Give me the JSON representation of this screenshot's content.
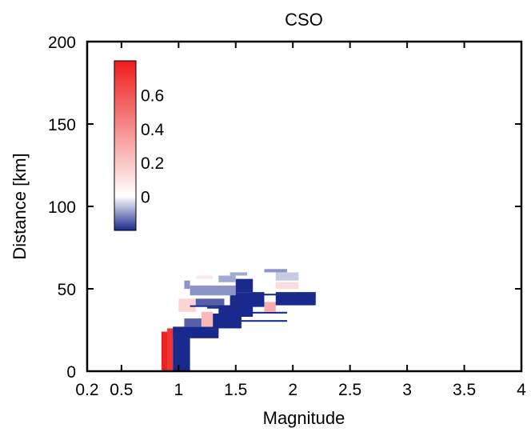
{
  "chart_data": {
    "type": "heatmap",
    "title": "CSO",
    "xlabel": "Magnitude",
    "ylabel": "Distance [km]",
    "xlim": [
      0.2,
      4
    ],
    "ylim": [
      0,
      200
    ],
    "xticks": [
      0.2,
      0.5,
      1,
      1.5,
      2,
      2.5,
      3,
      3.5,
      4
    ],
    "xtick_labels": [
      "0.2",
      "0.5",
      "1",
      "1.5",
      "2",
      "2.5",
      "3",
      "3.5",
      "4"
    ],
    "yticks": [
      0,
      50,
      100,
      150,
      200
    ],
    "ytick_labels": [
      "0",
      "50",
      "100",
      "150",
      "200"
    ],
    "grid": false,
    "colorbar": {
      "position": "top-left",
      "range": [
        -0.2,
        0.8
      ],
      "ticks": [
        0,
        0.2,
        0.4,
        0.6
      ],
      "tick_labels": [
        "0",
        "0.2",
        "0.4",
        "0.6"
      ],
      "colors": {
        "low": "#1a2a8c",
        "mid": "#ffffff",
        "high": "#ee1c1c"
      }
    },
    "cells": [
      {
        "m": [
          0.85,
          0.9
        ],
        "d": [
          0,
          24
        ],
        "v": 0.78
      },
      {
        "m": [
          0.9,
          0.95
        ],
        "d": [
          0,
          26
        ],
        "v": 0.72
      },
      {
        "m": [
          0.95,
          1.1
        ],
        "d": [
          0,
          26
        ],
        "v": -0.25
      },
      {
        "m": [
          0.95,
          1.35
        ],
        "d": [
          20,
          27
        ],
        "v": -0.55
      },
      {
        "m": [
          1.05,
          1.35
        ],
        "d": [
          23,
          26
        ],
        "v": -0.85
      },
      {
        "m": [
          1.05,
          1.2
        ],
        "d": [
          27,
          32
        ],
        "v": -0.15
      },
      {
        "m": [
          1.2,
          1.3
        ],
        "d": [
          27,
          36
        ],
        "v": 0.25
      },
      {
        "m": [
          1.3,
          1.55
        ],
        "d": [
          26,
          35
        ],
        "v": -0.45
      },
      {
        "m": [
          1.35,
          1.65
        ],
        "d": [
          33,
          40
        ],
        "v": -0.25
      },
      {
        "m": [
          1.5,
          1.55
        ],
        "d": [
          37,
          39
        ],
        "v": -0.75
      },
      {
        "m": [
          1.55,
          1.95
        ],
        "d": [
          30,
          31
        ],
        "v": -0.7
      },
      {
        "m": [
          1.55,
          1.95
        ],
        "d": [
          35,
          36
        ],
        "v": -0.2
      },
      {
        "m": [
          1.25,
          1.5
        ],
        "d": [
          38,
          39
        ],
        "v": -0.5
      },
      {
        "m": [
          1.0,
          1.15
        ],
        "d": [
          36,
          44
        ],
        "v": 0.15
      },
      {
        "m": [
          1.15,
          1.4
        ],
        "d": [
          40,
          44
        ],
        "v": -0.15
      },
      {
        "m": [
          1.1,
          1.45
        ],
        "d": [
          39,
          40
        ],
        "v": -0.6
      },
      {
        "m": [
          1.45,
          1.75
        ],
        "d": [
          39,
          48
        ],
        "v": -0.3
      },
      {
        "m": [
          1.55,
          1.65
        ],
        "d": [
          43,
          47
        ],
        "v": -0.6
      },
      {
        "m": [
          1.75,
          1.85
        ],
        "d": [
          36,
          42
        ],
        "v": 0.3
      },
      {
        "m": [
          1.85,
          2.2
        ],
        "d": [
          40,
          48
        ],
        "v": -0.2
      },
      {
        "m": [
          1.65,
          1.95
        ],
        "d": [
          46,
          47
        ],
        "v": -0.8
      },
      {
        "m": [
          1.95,
          2.2
        ],
        "d": [
          45,
          46
        ],
        "v": -0.4
      },
      {
        "m": [
          1.85,
          2.05
        ],
        "d": [
          50,
          54
        ],
        "v": 0.12
      },
      {
        "m": [
          1.1,
          1.5
        ],
        "d": [
          46,
          52
        ],
        "v": -0.1
      },
      {
        "m": [
          1.5,
          1.65
        ],
        "d": [
          48,
          56
        ],
        "v": -0.2
      },
      {
        "m": [
          1.35,
          1.5
        ],
        "d": [
          54,
          58
        ],
        "v": -0.08
      },
      {
        "m": [
          1.15,
          1.3
        ],
        "d": [
          56,
          58
        ],
        "v": 0.08
      },
      {
        "m": [
          1.05,
          1.1
        ],
        "d": [
          50,
          55
        ],
        "v": -0.1
      },
      {
        "m": [
          1.85,
          2.05
        ],
        "d": [
          55,
          60
        ],
        "v": -0.05
      },
      {
        "m": [
          1.75,
          1.95
        ],
        "d": [
          60,
          62
        ],
        "v": -0.1
      },
      {
        "m": [
          1.45,
          1.6
        ],
        "d": [
          58,
          60
        ],
        "v": -0.08
      }
    ]
  }
}
